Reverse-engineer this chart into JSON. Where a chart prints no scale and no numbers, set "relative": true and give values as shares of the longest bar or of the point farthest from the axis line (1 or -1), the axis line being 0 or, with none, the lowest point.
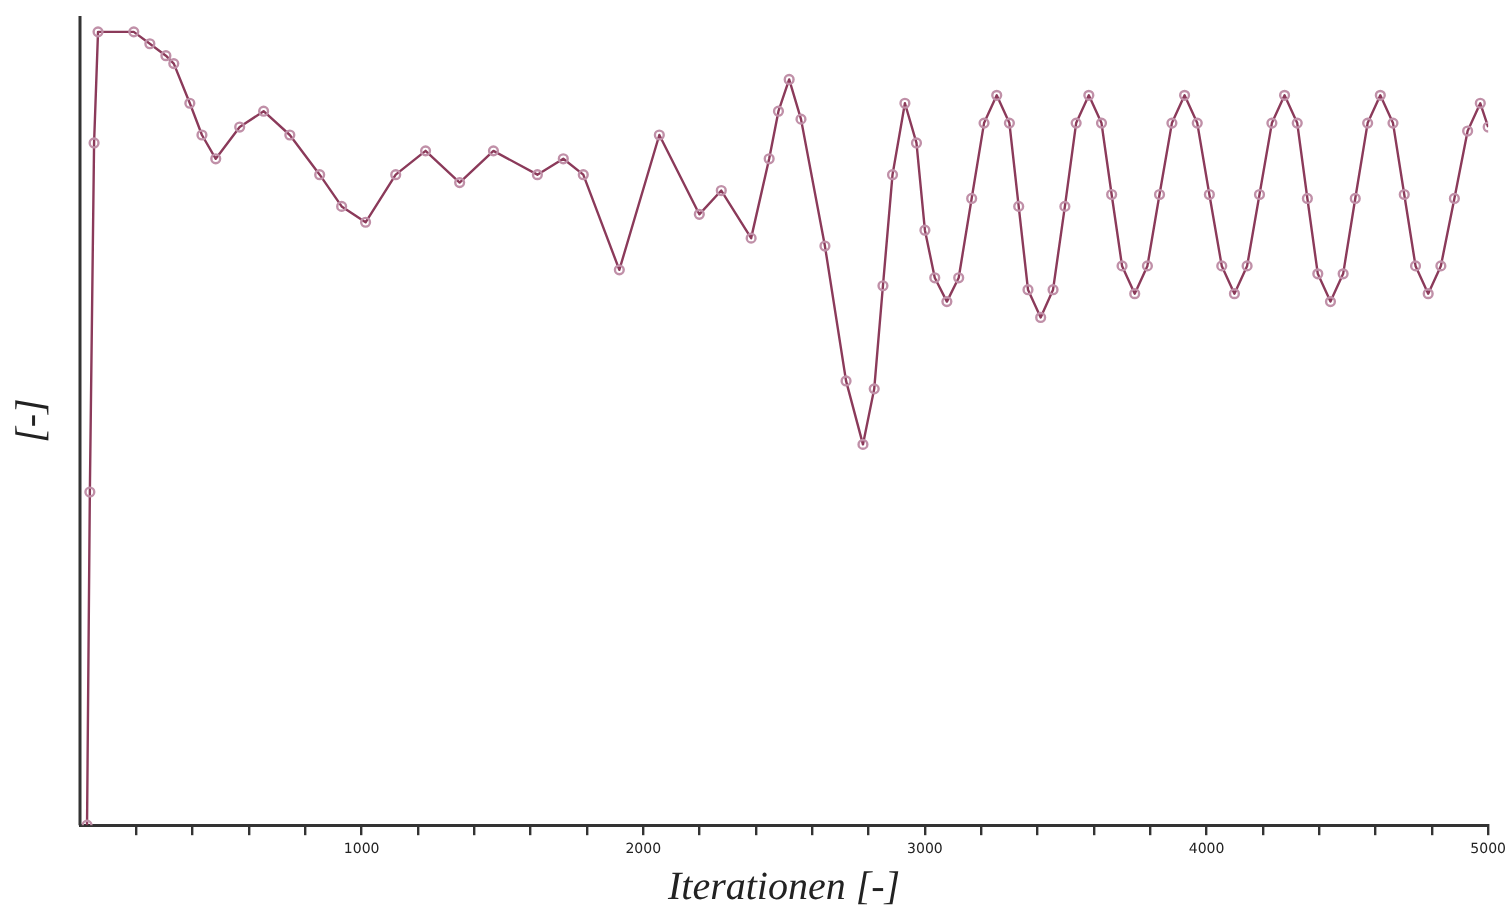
{
  "chart_data": {
    "type": "line",
    "xlabel": "Iterationen [-]",
    "ylabel": "[-]",
    "relative": true,
    "marker": "circle",
    "line_style": "solid",
    "grid": false,
    "legend": false,
    "xlim": [
      0,
      5000
    ],
    "xticks": [
      {
        "value": 200,
        "label": null
      },
      {
        "value": 400,
        "label": null
      },
      {
        "value": 600,
        "label": null
      },
      {
        "value": 800,
        "label": null
      },
      1000,
      {
        "value": 1200,
        "label": null
      },
      {
        "value": 1400,
        "label": null
      },
      {
        "value": 1600,
        "label": null
      },
      {
        "value": 1800,
        "label": null
      },
      2000,
      {
        "value": 2200,
        "label": null
      },
      {
        "value": 2400,
        "label": null
      },
      {
        "value": 2600,
        "label": null
      },
      {
        "value": 2800,
        "label": null
      },
      3000,
      {
        "value": 3200,
        "label": null
      },
      {
        "value": 3400,
        "label": null
      },
      {
        "value": 3600,
        "label": null
      },
      {
        "value": 3800,
        "label": null
      },
      4000,
      {
        "value": 4200,
        "label": null
      },
      {
        "value": 4400,
        "label": null
      },
      {
        "value": 4600,
        "label": null
      },
      {
        "value": 4800,
        "label": null
      },
      5000
    ],
    "series": [
      {
        "color": "#8b3a5a",
        "x": [
          25,
          35,
          50,
          64,
          191,
          248,
          305,
          333,
          390,
          433,
          482,
          567,
          652,
          745,
          851,
          929,
          1014,
          1121,
          1227,
          1348,
          1468,
          1624,
          1716,
          1787,
          1915,
          2057,
          2199,
          2277,
          2383,
          2447,
          2480,
          2518,
          2560,
          2645,
          2720,
          2780,
          2820,
          2851,
          2885,
          2929,
          2970,
          3000,
          3035,
          3078,
          3120,
          3166,
          3210,
          3255,
          3300,
          3333,
          3366,
          3411,
          3455,
          3497,
          3537,
          3582,
          3627,
          3663,
          3700,
          3745,
          3790,
          3833,
          3877,
          3922,
          3967,
          4010,
          4054,
          4099,
          4144,
          4188,
          4232,
          4277,
          4322,
          4358,
          4395,
          4440,
          4485,
          4528,
          4572,
          4617,
          4662,
          4702,
          4742,
          4787,
          4832,
          4880,
          4927,
          4972,
          5000
        ],
        "values": [
          0,
          0.42,
          0.86,
          1,
          1,
          0.985,
          0.97,
          0.96,
          0.91,
          0.87,
          0.84,
          0.88,
          0.9,
          0.87,
          0.82,
          0.78,
          0.76,
          0.82,
          0.85,
          0.81,
          0.85,
          0.82,
          0.84,
          0.82,
          0.7,
          0.87,
          0.77,
          0.8,
          0.74,
          0.84,
          0.9,
          0.94,
          0.89,
          0.73,
          0.56,
          0.48,
          0.55,
          0.68,
          0.82,
          0.91,
          0.86,
          0.75,
          0.69,
          0.66,
          0.69,
          0.79,
          0.885,
          0.92,
          0.885,
          0.78,
          0.675,
          0.64,
          0.675,
          0.78,
          0.885,
          0.92,
          0.885,
          0.795,
          0.705,
          0.67,
          0.705,
          0.795,
          0.885,
          0.92,
          0.885,
          0.795,
          0.705,
          0.67,
          0.705,
          0.795,
          0.885,
          0.92,
          0.885,
          0.79,
          0.695,
          0.66,
          0.695,
          0.79,
          0.885,
          0.92,
          0.885,
          0.795,
          0.705,
          0.67,
          0.705,
          0.79,
          0.875,
          0.91,
          0.88
        ]
      }
    ]
  }
}
